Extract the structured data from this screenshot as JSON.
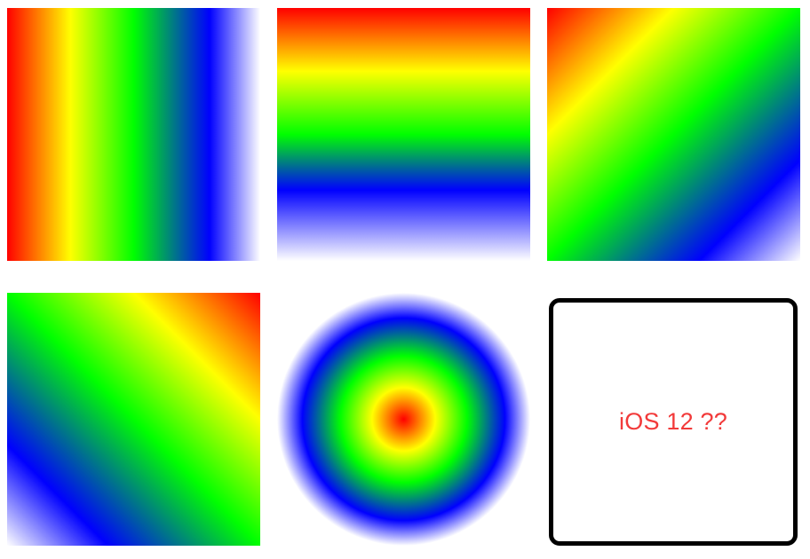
{
  "tiles": [
    {
      "id": "linear-horizontal",
      "kind": "linear-gradient"
    },
    {
      "id": "linear-vertical",
      "kind": "linear-gradient"
    },
    {
      "id": "linear-diagonal-down-right",
      "kind": "linear-gradient"
    },
    {
      "id": "linear-diagonal-down-left",
      "kind": "linear-gradient"
    },
    {
      "id": "radial",
      "kind": "radial-gradient"
    },
    {
      "id": "placeholder",
      "kind": "text-box"
    }
  ],
  "gradient_colors": [
    "#ff0000",
    "#ffff00",
    "#00ff00",
    "#0000ff",
    "#ffffff"
  ],
  "placeholder": {
    "label": "iOS 12 ??",
    "text_color": "#f23a3a",
    "border_color": "#000000"
  }
}
